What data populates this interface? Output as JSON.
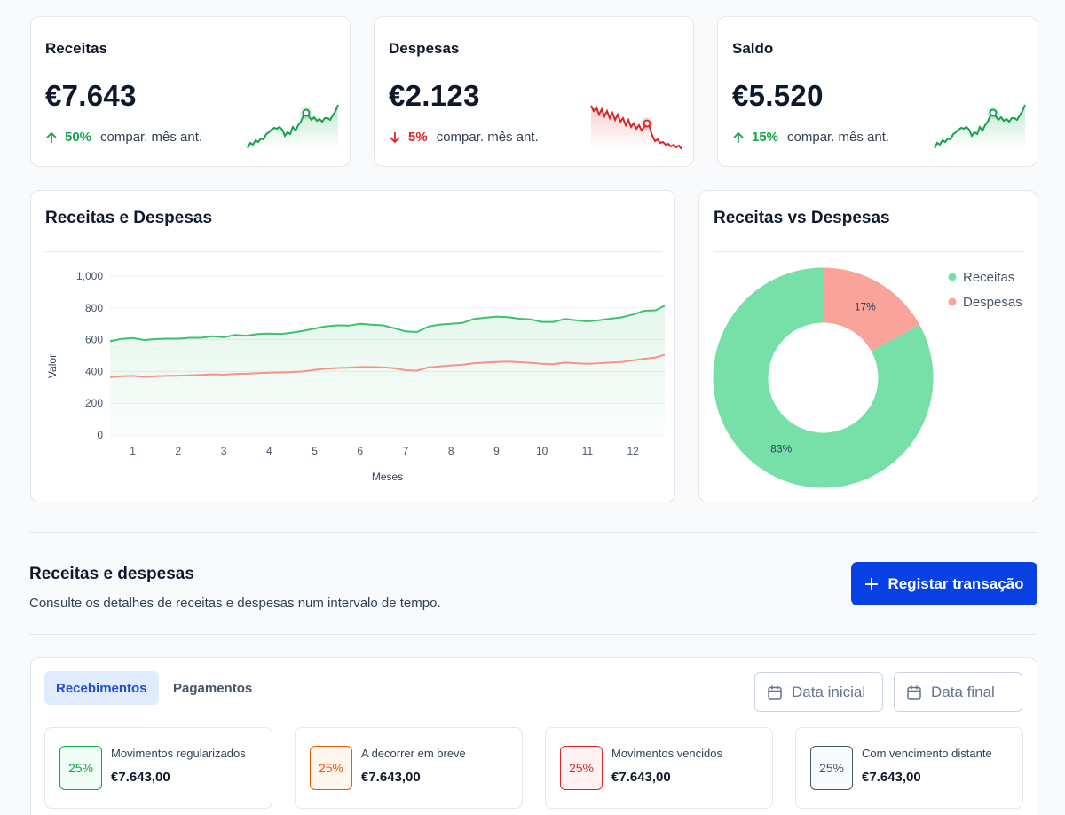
{
  "kpis": [
    {
      "title": "Receitas",
      "value": "€7.643",
      "delta": "50%",
      "direction": "up",
      "compare": "compar. mês ant.",
      "color": "#16a34a"
    },
    {
      "title": "Despesas",
      "value": "€2.123",
      "delta": "5%",
      "direction": "down",
      "compare": "compar. mês ant.",
      "color": "#dc2626"
    },
    {
      "title": "Saldo",
      "value": "€5.520",
      "delta": "15%",
      "direction": "up",
      "compare": "compar. mês ant.",
      "color": "#16a34a"
    }
  ],
  "line_panel": {
    "title": "Receitas e Despesas"
  },
  "pie_panel": {
    "title": "Receitas vs Despesas"
  },
  "chart_data": [
    {
      "type": "area",
      "title": "Receitas e Despesas",
      "xlabel": "Meses",
      "ylabel": "Valor",
      "xlim": [
        0.5,
        12.7
      ],
      "ylim": [
        0,
        1000
      ],
      "yticks": [
        "0",
        "200",
        "400",
        "600",
        "800",
        "1,000"
      ],
      "xticks": [
        "1",
        "2",
        "3",
        "4",
        "5",
        "6",
        "7",
        "8",
        "9",
        "10",
        "11",
        "12"
      ],
      "grid": true,
      "legend": "none",
      "series": [
        {
          "color": "#3cc26d",
          "fill": true,
          "x": [
            0.5,
            0.75,
            1,
            1.25,
            1.5,
            1.75,
            2,
            2.25,
            2.5,
            2.75,
            3,
            3.25,
            3.5,
            3.75,
            4,
            4.25,
            4.5,
            4.75,
            5,
            5.25,
            5.5,
            5.75,
            6,
            6.25,
            6.5,
            6.75,
            7,
            7.25,
            7.5,
            7.75,
            8,
            8.25,
            8.5,
            8.75,
            9,
            9.25,
            9.5,
            9.75,
            10,
            10.25,
            10.5,
            10.75,
            11,
            11.25,
            11.5,
            11.75,
            12,
            12.25,
            12.5,
            12.7
          ],
          "values": [
            590,
            605,
            610,
            598,
            604,
            606,
            606,
            612,
            612,
            622,
            615,
            630,
            625,
            636,
            638,
            636,
            644,
            656,
            670,
            684,
            690,
            688,
            700,
            694,
            690,
            672,
            652,
            648,
            682,
            695,
            700,
            705,
            730,
            738,
            745,
            742,
            732,
            728,
            712,
            712,
            730,
            722,
            715,
            722,
            732,
            740,
            758,
            782,
            785,
            815
          ]
        },
        {
          "color": "#f4948b",
          "fill": false,
          "x": [
            0.5,
            0.75,
            1,
            1.25,
            1.5,
            1.75,
            2,
            2.25,
            2.5,
            2.75,
            3,
            3.25,
            3.5,
            3.75,
            4,
            4.25,
            4.5,
            4.75,
            5,
            5.25,
            5.5,
            5.75,
            6,
            6.25,
            6.5,
            6.75,
            7,
            7.25,
            7.5,
            7.75,
            8,
            8.25,
            8.5,
            8.75,
            9,
            9.25,
            9.5,
            9.75,
            10,
            10.25,
            10.5,
            10.75,
            11,
            11.25,
            11.5,
            11.75,
            12,
            12.25,
            12.5,
            12.7
          ],
          "values": [
            365,
            370,
            372,
            366,
            370,
            372,
            374,
            376,
            378,
            382,
            380,
            385,
            386,
            390,
            392,
            394,
            396,
            400,
            410,
            418,
            422,
            424,
            428,
            428,
            426,
            420,
            408,
            405,
            425,
            432,
            438,
            442,
            452,
            456,
            460,
            462,
            458,
            455,
            448,
            446,
            456,
            452,
            448,
            452,
            456,
            460,
            470,
            480,
            488,
            505
          ]
        }
      ]
    },
    {
      "type": "pie",
      "title": "Receitas vs Despesas",
      "donut": true,
      "legend": "top-right",
      "labels": [
        "Receitas",
        "Despesas"
      ],
      "values": [
        83,
        17
      ],
      "value_labels": [
        "83%",
        "17%"
      ],
      "colors": [
        "#76e0a8",
        "#f9a39a"
      ]
    }
  ],
  "section": {
    "title": "Receitas e despesas",
    "subtitle": "Consulte os detalhes de receitas e despesas num intervalo de tempo.",
    "register_button": "Registar transação"
  },
  "tabs": [
    {
      "label": "Recebimentos",
      "active": true
    },
    {
      "label": "Pagamentos",
      "active": false
    }
  ],
  "date_filters": {
    "start_placeholder": "Data inicial",
    "end_placeholder": "Data final"
  },
  "stats": [
    {
      "pct": "25%",
      "label": "Movimentos regularizados",
      "amount": "€7.643,00",
      "color": "#16a34a",
      "bg": "#f0fdf4"
    },
    {
      "pct": "25%",
      "label": "A decorrer em breve",
      "amount": "€7.643,00",
      "color": "#ea580c",
      "bg": "#fff7ed"
    },
    {
      "pct": "25%",
      "label": "Movimentos vencidos",
      "amount": "€7.643,00",
      "color": "#dc2626",
      "bg": "#fef2f2"
    },
    {
      "pct": "25%",
      "label": "Com vencimento distante",
      "amount": "€7.643,00",
      "color": "#475569",
      "bg": "#f8fafc"
    }
  ]
}
